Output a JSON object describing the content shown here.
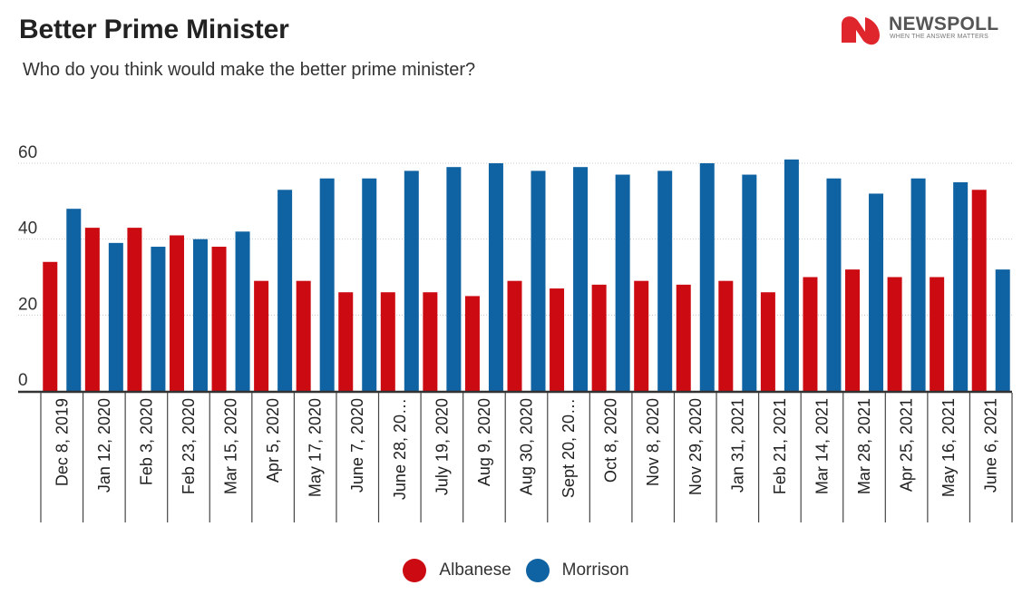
{
  "header": {
    "title": "Better Prime Minister",
    "subtitle": "Who do you think would make the better prime minister?"
  },
  "logo": {
    "name": "NEWSPOLL",
    "tagline": "WHEN THE ANSWER MATTERS",
    "icon": "newspoll-n-icon",
    "colors": {
      "red": "#e0262d",
      "text": "#555555"
    }
  },
  "chart_data": {
    "type": "bar",
    "title": "Better Prime Minister",
    "subtitle": "Who do you think would make the better prime minister?",
    "xlabel": "",
    "ylabel": "",
    "ylim": [
      0,
      60
    ],
    "yticks": [
      0,
      20,
      40,
      60
    ],
    "grid": true,
    "legend": "bottom-center",
    "categories": [
      "Dec 8, 2019",
      "Jan 12, 2020",
      "Feb 3, 2020",
      "Feb 23, 2020",
      "Mar 15, 2020",
      "Apr 5, 2020",
      "May 17, 2020",
      "June 7, 2020",
      "June 28, 20…",
      "July 19, 2020",
      "Aug 9, 2020",
      "Aug 30, 2020",
      "Sept 20, 20…",
      "Oct 8, 2020",
      "Nov 8, 2020",
      "Nov 29, 2020",
      "Jan 31, 2021",
      "Feb 21, 2021",
      "Mar 14, 2021",
      "Mar 28, 2021",
      "Apr 25, 2021",
      "May 16, 2021",
      "June 6, 2021"
    ],
    "series": [
      {
        "name": "Albanese",
        "color": "#cc0a12",
        "values": [
          34,
          43,
          43,
          41,
          38,
          29,
          29,
          26,
          26,
          26,
          25,
          29,
          27,
          28,
          29,
          28,
          29,
          26,
          30,
          32,
          30,
          30,
          53
        ]
      },
      {
        "name": "Morrison",
        "color": "#0f63a3",
        "values": [
          48,
          39,
          38,
          40,
          42,
          53,
          56,
          56,
          58,
          59,
          60,
          58,
          59,
          57,
          58,
          60,
          57,
          61,
          56,
          52,
          56,
          55,
          32
        ]
      }
    ]
  }
}
